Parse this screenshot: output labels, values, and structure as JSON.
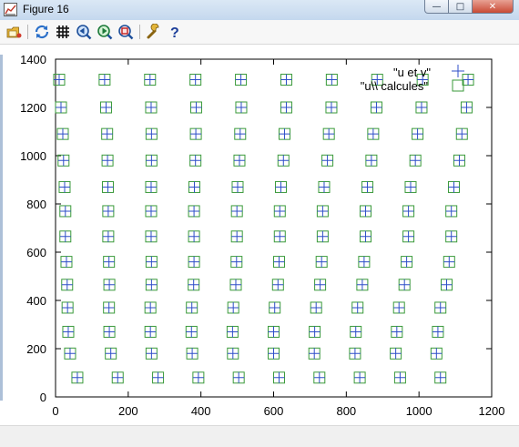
{
  "window": {
    "title": "Figure 16"
  },
  "title_buttons": {
    "minimize": "—",
    "maximize": "□",
    "close": "✕"
  },
  "toolbar": {
    "items": [
      {
        "name": "open-icon"
      },
      {
        "name": "replot-icon"
      },
      {
        "name": "grid-icon"
      },
      {
        "name": "zoom-previous-icon"
      },
      {
        "name": "zoom-next-icon"
      },
      {
        "name": "zoom-autoscale-icon"
      },
      {
        "name": "options-icon"
      },
      {
        "name": "help-icon"
      }
    ]
  },
  "colors": {
    "series_1": "#2f4fc8",
    "series_2": "#3a9a3a",
    "axis": "#000000"
  },
  "chart_data": {
    "type": "scatter",
    "xlim": [
      0,
      1200
    ],
    "ylim": [
      0,
      1400
    ],
    "xticks": [
      0,
      200,
      400,
      600,
      800,
      1000,
      1200
    ],
    "yticks": [
      0,
      200,
      400,
      600,
      800,
      1000,
      1200,
      1400
    ],
    "grid": false,
    "legend_position": "top-right",
    "series": [
      {
        "name": "\"u et v\"",
        "marker": "plus",
        "grid": {
          "row_y": [
            80,
            180,
            270,
            370,
            465,
            560,
            665,
            770,
            870,
            980,
            1090,
            1200,
            1315
          ],
          "row_x0": [
            60,
            40,
            35,
            33,
            32,
            30,
            27,
            27,
            25,
            22,
            20,
            15,
            10
          ],
          "row_dx": [
            111,
            112,
            113,
            114,
            116,
            117,
            118,
            118,
            119,
            121,
            122,
            124,
            125
          ]
        }
      },
      {
        "name": "\"u\\\\ calcules\"",
        "marker": "square",
        "grid": {
          "row_y": [
            80,
            180,
            270,
            370,
            465,
            560,
            665,
            770,
            870,
            980,
            1090,
            1200,
            1315
          ],
          "row_x0": [
            60,
            40,
            35,
            33,
            32,
            30,
            27,
            27,
            25,
            22,
            20,
            15,
            10
          ],
          "row_dx": [
            111,
            112,
            113,
            114,
            116,
            117,
            118,
            118,
            119,
            121,
            122,
            124,
            125
          ]
        }
      }
    ]
  }
}
